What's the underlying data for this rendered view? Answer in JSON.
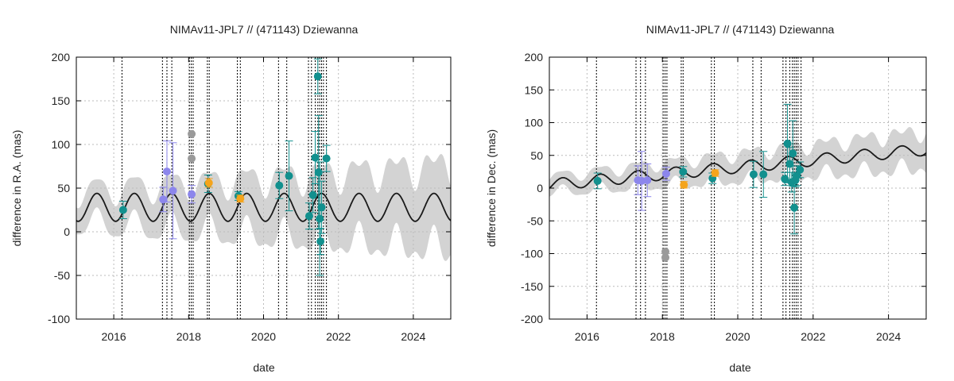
{
  "colors": {
    "band": "#d3d3d3",
    "model": "#1a1a1a",
    "grid": "#bbbbbb",
    "vline": "#000000",
    "teal": "#12908e",
    "violet": "#8c86ec",
    "gray": "#9a9a9a",
    "orange": "#f5a41b"
  },
  "chart_data": [
    {
      "type": "scatter",
      "title": "NIMAv11-JPL7 // (471143) Dziewanna",
      "xlabel": "date",
      "ylabel": "difference in R.A. (mas)",
      "xlim": [
        2015,
        2025
      ],
      "ylim": [
        -100,
        200
      ],
      "xticks": [
        "2016",
        "2018",
        "2020",
        "2022",
        "2024"
      ],
      "xtick_values": [
        2016,
        2018,
        2020,
        2022,
        2024
      ],
      "yticks": [
        "-100",
        "-50",
        "0",
        "50",
        "100",
        "150",
        "200"
      ],
      "ytick_values": [
        -100,
        -50,
        0,
        50,
        100,
        150,
        200
      ],
      "model": {
        "mean": 28,
        "amplitude": 16,
        "period_years": 1.0,
        "peak_year": 2016.55,
        "trend": 0
      },
      "band": {
        "half_width_start": 18,
        "half_width_end": 48,
        "wiggle": 8
      },
      "vlines": [
        2016.22,
        2017.3,
        2017.42,
        2017.55,
        2018.02,
        2018.07,
        2018.12,
        2018.5,
        2018.55,
        2019.3,
        2019.38,
        2020.4,
        2020.62,
        2021.2,
        2021.28,
        2021.38,
        2021.45,
        2021.5,
        2021.55,
        2021.6,
        2021.68
      ],
      "points": [
        {
          "x": 2016.25,
          "y": 25,
          "err": 10,
          "color": "teal"
        },
        {
          "x": 2017.32,
          "y": 37,
          "err": 14,
          "color": "violet"
        },
        {
          "x": 2017.42,
          "y": 69,
          "err": 35,
          "color": "violet"
        },
        {
          "x": 2017.58,
          "y": 47,
          "err": 55,
          "color": "violet"
        },
        {
          "x": 2018.08,
          "y": 112,
          "err": 0,
          "color": "gray"
        },
        {
          "x": 2018.08,
          "y": 84,
          "err": 0,
          "color": "gray"
        },
        {
          "x": 2018.08,
          "y": 43,
          "err": 10,
          "color": "violet"
        },
        {
          "x": 2018.52,
          "y": 55,
          "err": 10,
          "color": "teal"
        },
        {
          "x": 2018.54,
          "y": 56,
          "err": 5,
          "color": "orange"
        },
        {
          "x": 2019.33,
          "y": 41,
          "err": 5,
          "color": "teal"
        },
        {
          "x": 2019.38,
          "y": 38,
          "err": 4,
          "color": "orange"
        },
        {
          "x": 2020.42,
          "y": 53,
          "err": 15,
          "color": "teal"
        },
        {
          "x": 2020.68,
          "y": 64,
          "err": 40,
          "color": "teal"
        },
        {
          "x": 2021.22,
          "y": 18,
          "err": 15,
          "color": "teal"
        },
        {
          "x": 2021.32,
          "y": 42,
          "err": 20,
          "color": "teal"
        },
        {
          "x": 2021.38,
          "y": 85,
          "err": 30,
          "color": "teal"
        },
        {
          "x": 2021.45,
          "y": 178,
          "err": 20,
          "color": "teal"
        },
        {
          "x": 2021.47,
          "y": 68,
          "err": 65,
          "color": "teal"
        },
        {
          "x": 2021.5,
          "y": 15,
          "err": 65,
          "color": "teal"
        },
        {
          "x": 2021.52,
          "y": -11,
          "err": 15,
          "color": "teal"
        },
        {
          "x": 2021.55,
          "y": 28,
          "err": 30,
          "color": "teal"
        },
        {
          "x": 2021.68,
          "y": 84,
          "err": 15,
          "color": "teal"
        }
      ]
    },
    {
      "type": "scatter",
      "title": "NIMAv11-JPL7 // (471143) Dziewanna",
      "xlabel": "date",
      "ylabel": "difference in Dec. (mas)",
      "xlim": [
        2015,
        2025
      ],
      "ylim": [
        -200,
        200
      ],
      "xticks": [
        "2016",
        "2018",
        "2020",
        "2022",
        "2024"
      ],
      "xtick_values": [
        2016,
        2018,
        2020,
        2022,
        2024
      ],
      "yticks": [
        "-200",
        "-150",
        "-100",
        "-50",
        "0",
        "50",
        "100",
        "150",
        "200"
      ],
      "ytick_values": [
        -200,
        -150,
        -100,
        -50,
        0,
        50,
        100,
        150,
        200
      ],
      "model": {
        "mean": 5,
        "amplitude": 9,
        "period_years": 1.0,
        "peak_year": 2016.35,
        "trend": 5.4
      },
      "band": {
        "half_width_start": 12,
        "half_width_end": 28,
        "wiggle": 6
      },
      "vlines": [
        2016.25,
        2017.3,
        2017.42,
        2017.55,
        2018.02,
        2018.07,
        2018.12,
        2018.5,
        2018.55,
        2019.3,
        2019.38,
        2020.4,
        2020.62,
        2021.2,
        2021.28,
        2021.38,
        2021.45,
        2021.5,
        2021.55,
        2021.6,
        2021.68
      ],
      "points": [
        {
          "x": 2016.28,
          "y": 11,
          "err": 12,
          "color": "teal"
        },
        {
          "x": 2017.35,
          "y": 12,
          "err": 22,
          "color": "violet"
        },
        {
          "x": 2017.45,
          "y": 11,
          "err": 45,
          "color": "violet"
        },
        {
          "x": 2017.6,
          "y": 12,
          "err": 25,
          "color": "violet"
        },
        {
          "x": 2018.08,
          "y": -97,
          "err": 0,
          "color": "gray"
        },
        {
          "x": 2018.08,
          "y": -106,
          "err": 0,
          "color": "gray"
        },
        {
          "x": 2018.1,
          "y": 22,
          "err": 10,
          "color": "violet"
        },
        {
          "x": 2018.55,
          "y": 25,
          "err": 8,
          "color": "teal"
        },
        {
          "x": 2018.57,
          "y": 5,
          "err": 5,
          "color": "orange"
        },
        {
          "x": 2019.33,
          "y": 15,
          "err": 8,
          "color": "teal"
        },
        {
          "x": 2019.4,
          "y": 23,
          "err": 5,
          "color": "orange"
        },
        {
          "x": 2020.42,
          "y": 21,
          "err": 20,
          "color": "teal"
        },
        {
          "x": 2020.68,
          "y": 21,
          "err": 35,
          "color": "teal"
        },
        {
          "x": 2021.25,
          "y": 14,
          "err": 10,
          "color": "teal"
        },
        {
          "x": 2021.32,
          "y": 68,
          "err": 60,
          "color": "teal"
        },
        {
          "x": 2021.38,
          "y": 37,
          "err": 25,
          "color": "teal"
        },
        {
          "x": 2021.43,
          "y": 9,
          "err": 15,
          "color": "teal"
        },
        {
          "x": 2021.46,
          "y": 53,
          "err": 50,
          "color": "teal"
        },
        {
          "x": 2021.5,
          "y": -30,
          "err": 40,
          "color": "teal"
        },
        {
          "x": 2021.53,
          "y": 12,
          "err": 10,
          "color": "teal"
        },
        {
          "x": 2021.57,
          "y": 19,
          "err": 15,
          "color": "teal"
        },
        {
          "x": 2021.65,
          "y": 28,
          "err": 12,
          "color": "teal"
        }
      ]
    }
  ]
}
